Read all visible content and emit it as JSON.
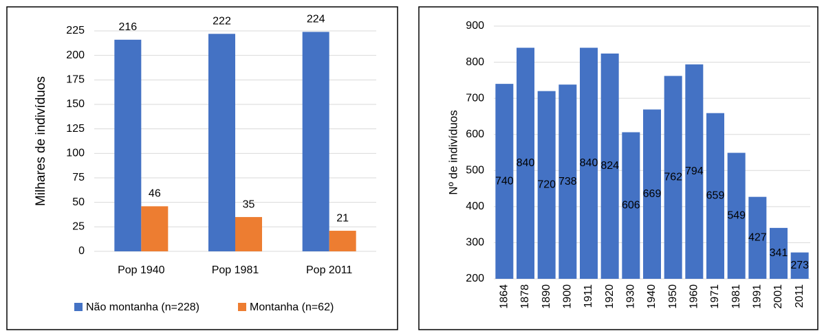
{
  "chart_data": [
    {
      "type": "bar",
      "ylabel": "Milhares de indivíduos",
      "categories": [
        "Pop 1940",
        "Pop 1981",
        "Pop 2011"
      ],
      "series": [
        {
          "name": "Não montanha (n=228)",
          "color": "#4472c4",
          "values": [
            216,
            222,
            224
          ]
        },
        {
          "name": "Montanha (n=62)",
          "color": "#ed7d31",
          "values": [
            46,
            35,
            21
          ]
        }
      ],
      "ylim": [
        0,
        225
      ],
      "yticks": [
        0,
        25,
        50,
        75,
        100,
        125,
        150,
        175,
        200,
        225
      ],
      "grid": true,
      "legend": "bottom"
    },
    {
      "type": "bar",
      "ylabel": "Nº de indivíduos",
      "categories": [
        "1864",
        "1878",
        "1890",
        "1900",
        "1911",
        "1920",
        "1930",
        "1940",
        "1950",
        "1960",
        "1971",
        "1981",
        "1991",
        "2001",
        "2011"
      ],
      "series": [
        {
          "color": "#4472c4",
          "values": [
            740,
            840,
            720,
            738,
            840,
            824,
            606,
            669,
            762,
            794,
            659,
            549,
            427,
            341,
            273
          ]
        }
      ],
      "ylim": [
        200,
        900
      ],
      "yticks": [
        200,
        300,
        400,
        500,
        600,
        700,
        800,
        900
      ],
      "grid": true
    }
  ]
}
